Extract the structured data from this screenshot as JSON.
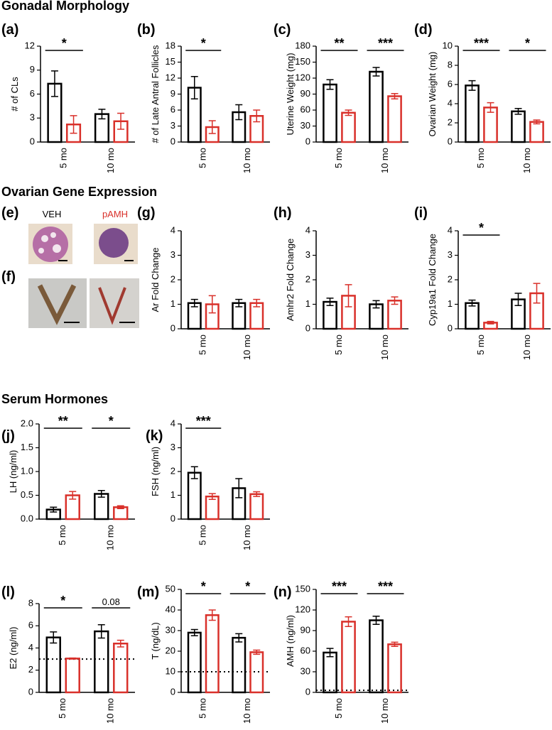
{
  "headings": [
    "Gonadal Morphology",
    "Ovarian Gene Expression",
    "Serum Hormones"
  ],
  "images": {
    "panel_e": "(e)",
    "veh": "VEH",
    "pamh": "pAMH",
    "panel_f": "(f)"
  },
  "chart_data": [
    {
      "type": "bar",
      "panel": "(a)",
      "ylabel": "# of CLs",
      "categories": [
        "5 mo",
        "10 mo"
      ],
      "series": [
        {
          "color": "#000000",
          "values": [
            7.3,
            3.5
          ],
          "errors": [
            1.6,
            0.6
          ]
        },
        {
          "color": "#d9302a",
          "values": [
            2.2,
            2.6
          ],
          "errors": [
            1.1,
            1.0
          ]
        }
      ],
      "ylim": [
        0,
        12
      ],
      "yticks": [
        0,
        3,
        6,
        9,
        12
      ],
      "annotations": [
        {
          "category": 0,
          "label": "*"
        }
      ]
    },
    {
      "type": "bar",
      "panel": "(b)",
      "ylabel": "# of Late Antral Follicles",
      "categories": [
        "5 mo",
        "10 mo"
      ],
      "series": [
        {
          "color": "#000000",
          "values": [
            10.2,
            5.6
          ],
          "errors": [
            2.1,
            1.4
          ]
        },
        {
          "color": "#d9302a",
          "values": [
            2.8,
            4.9
          ],
          "errors": [
            1.2,
            1.1
          ]
        }
      ],
      "ylim": [
        0,
        18
      ],
      "yticks": [
        0,
        3,
        6,
        9,
        12,
        15,
        18
      ],
      "annotations": [
        {
          "category": 0,
          "label": "*"
        }
      ]
    },
    {
      "type": "bar",
      "panel": "(c)",
      "ylabel": "Uterine Weight (mg)",
      "categories": [
        "5 mo",
        "10 mo"
      ],
      "series": [
        {
          "color": "#000000",
          "values": [
            108,
            132
          ],
          "errors": [
            9,
            8
          ]
        },
        {
          "color": "#d9302a",
          "values": [
            55,
            86
          ],
          "errors": [
            5,
            5
          ]
        }
      ],
      "ylim": [
        0,
        180
      ],
      "yticks": [
        0,
        30,
        60,
        90,
        120,
        150,
        180
      ],
      "annotations": [
        {
          "category": 0,
          "label": "**"
        },
        {
          "category": 1,
          "label": "***"
        }
      ]
    },
    {
      "type": "bar",
      "panel": "(d)",
      "ylabel": "Ovarian Weight (mg)",
      "categories": [
        "5 mo",
        "10 mo"
      ],
      "series": [
        {
          "color": "#000000",
          "values": [
            5.9,
            3.2
          ],
          "errors": [
            0.5,
            0.3
          ]
        },
        {
          "color": "#d9302a",
          "values": [
            3.6,
            2.1
          ],
          "errors": [
            0.5,
            0.2
          ]
        }
      ],
      "ylim": [
        0,
        10
      ],
      "yticks": [
        0,
        2,
        4,
        6,
        8,
        10
      ],
      "annotations": [
        {
          "category": 0,
          "label": "***"
        },
        {
          "category": 1,
          "label": "*"
        }
      ]
    },
    {
      "type": "bar",
      "panel": "(g)",
      "ylabel": "Ar Fold Change",
      "categories": [
        "5 mo",
        "10 mo"
      ],
      "series": [
        {
          "color": "#000000",
          "values": [
            1.05,
            1.05
          ],
          "errors": [
            0.15,
            0.15
          ]
        },
        {
          "color": "#d9302a",
          "values": [
            1.0,
            1.05
          ],
          "errors": [
            0.35,
            0.15
          ]
        }
      ],
      "ylim": [
        0,
        4
      ],
      "yticks": [
        0,
        1,
        2,
        3,
        4
      ],
      "annotations": []
    },
    {
      "type": "bar",
      "panel": "(h)",
      "ylabel": "Amhr2 Fold Change",
      "categories": [
        "5 mo",
        "10 mo"
      ],
      "series": [
        {
          "color": "#000000",
          "values": [
            1.1,
            1.0
          ],
          "errors": [
            0.15,
            0.15
          ]
        },
        {
          "color": "#d9302a",
          "values": [
            1.35,
            1.15
          ],
          "errors": [
            0.45,
            0.15
          ]
        }
      ],
      "ylim": [
        0,
        4
      ],
      "yticks": [
        0,
        1,
        2,
        3,
        4
      ],
      "annotations": []
    },
    {
      "type": "bar",
      "panel": "(i)",
      "ylabel": "Cyp19a1 Fold Change",
      "categories": [
        "5 mo",
        "10 mo"
      ],
      "series": [
        {
          "color": "#000000",
          "values": [
            1.05,
            1.2
          ],
          "errors": [
            0.12,
            0.25
          ]
        },
        {
          "color": "#d9302a",
          "values": [
            0.25,
            1.45
          ],
          "errors": [
            0.05,
            0.4
          ]
        }
      ],
      "ylim": [
        0,
        4
      ],
      "yticks": [
        0,
        1,
        2,
        3,
        4
      ],
      "annotations": [
        {
          "category": 0,
          "label": "*"
        }
      ]
    },
    {
      "type": "bar",
      "panel": "(j)",
      "ylabel": "LH (ng/ml)",
      "categories": [
        "5 mo",
        "10 mo"
      ],
      "series": [
        {
          "color": "#000000",
          "values": [
            0.2,
            0.53
          ],
          "errors": [
            0.05,
            0.07
          ]
        },
        {
          "color": "#d9302a",
          "values": [
            0.5,
            0.25
          ],
          "errors": [
            0.08,
            0.03
          ]
        }
      ],
      "ylim": [
        0,
        2
      ],
      "yticks": [
        {
          "value": 0,
          "label": "0.0"
        },
        0.5,
        {
          "value": 1,
          "label": "1.0"
        },
        1.5,
        {
          "value": 2,
          "label": "2.0"
        }
      ],
      "annotations": [
        {
          "category": 0,
          "label": "**"
        },
        {
          "category": 1,
          "label": "*"
        }
      ]
    },
    {
      "type": "bar",
      "panel": "(k)",
      "ylabel": "FSH (ng/ml)",
      "categories": [
        "5 mo",
        "10 mo"
      ],
      "series": [
        {
          "color": "#000000",
          "values": [
            1.95,
            1.3
          ],
          "errors": [
            0.25,
            0.4
          ]
        },
        {
          "color": "#d9302a",
          "values": [
            0.95,
            1.05
          ],
          "errors": [
            0.12,
            0.1
          ]
        }
      ],
      "ylim": [
        0,
        4
      ],
      "yticks": [
        0,
        1,
        2,
        3,
        4
      ],
      "annotations": [
        {
          "category": 0,
          "label": "***"
        }
      ]
    },
    {
      "type": "bar",
      "panel": "(l)",
      "ylabel": "E2 (ng/ml)",
      "categories": [
        "5 mo",
        "10 mo"
      ],
      "series": [
        {
          "color": "#000000",
          "values": [
            4.95,
            5.5
          ],
          "errors": [
            0.5,
            0.6
          ]
        },
        {
          "color": "#d9302a",
          "values": [
            3.05,
            4.4
          ],
          "errors": [
            0.05,
            0.3
          ]
        }
      ],
      "ylim": [
        0,
        8
      ],
      "yticks": [
        0,
        2,
        4,
        6,
        8
      ],
      "ref_line": 3,
      "annotations": [
        {
          "category": 0,
          "label": "*"
        },
        {
          "category": 1,
          "label": "0.08"
        }
      ]
    },
    {
      "type": "bar",
      "panel": "(m)",
      "ylabel": "T (ng/dL)",
      "categories": [
        "5 mo",
        "10 mo"
      ],
      "series": [
        {
          "color": "#000000",
          "values": [
            29,
            26.5
          ],
          "errors": [
            1.5,
            2
          ]
        },
        {
          "color": "#d9302a",
          "values": [
            37.5,
            19.5
          ],
          "errors": [
            2.5,
            1
          ]
        }
      ],
      "ylim": [
        0,
        50
      ],
      "yticks": [
        0,
        10,
        20,
        30,
        40,
        50
      ],
      "ref_line": 10,
      "annotations": [
        {
          "category": 0,
          "label": "*"
        },
        {
          "category": 1,
          "label": "*"
        }
      ]
    },
    {
      "type": "bar",
      "panel": "(n)",
      "ylabel": "AMH (ng/ml)",
      "categories": [
        "5 mo",
        "10 mo"
      ],
      "series": [
        {
          "color": "#000000",
          "values": [
            58,
            105
          ],
          "errors": [
            6,
            6
          ]
        },
        {
          "color": "#d9302a",
          "values": [
            103,
            70
          ],
          "errors": [
            7,
            3
          ]
        }
      ],
      "ylim": [
        0,
        150
      ],
      "yticks": [
        0,
        30,
        60,
        90,
        120,
        150
      ],
      "ref_line": 3,
      "annotations": [
        {
          "category": 0,
          "label": "***"
        },
        {
          "category": 1,
          "label": "***"
        }
      ]
    }
  ]
}
